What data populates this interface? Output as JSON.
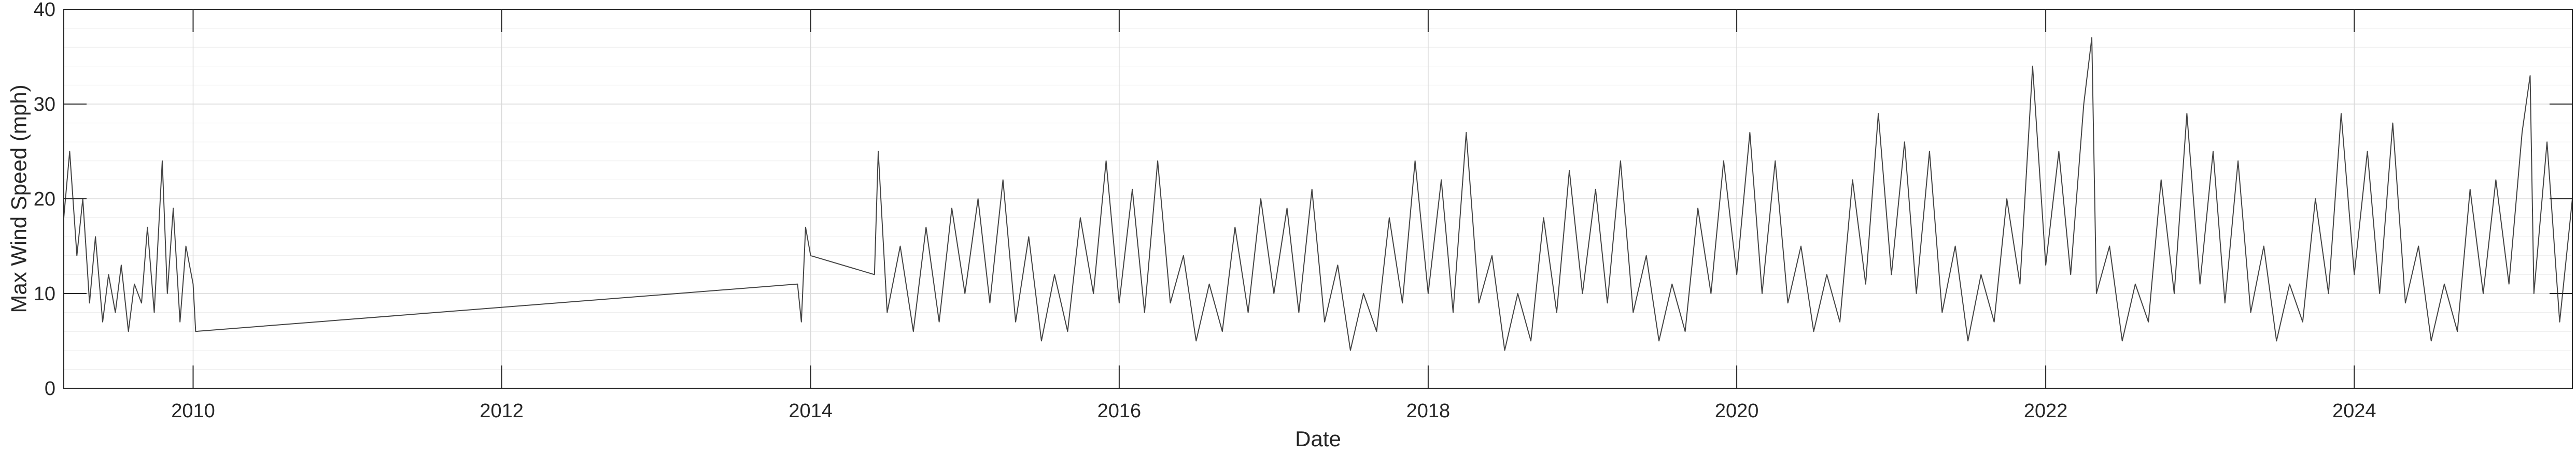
{
  "chart_data": {
    "type": "line",
    "title": "",
    "xlabel": "Date",
    "ylabel": "Max Wind Speed (mph)",
    "xlim": [
      "2009-03-01",
      "2025-05-31"
    ],
    "ylim": [
      0,
      40
    ],
    "x_ticks": [
      "2010",
      "2012",
      "2014",
      "2016",
      "2018",
      "2020",
      "2022",
      "2024"
    ],
    "y_ticks": [
      "0",
      "10",
      "20",
      "30",
      "40"
    ],
    "grid": true,
    "minor_grid_y": true,
    "legend": "none",
    "series": [
      {
        "color": "#444444",
        "values_note": "daily maxima, approx.",
        "points": [
          [
            "2009-03-01",
            18
          ],
          [
            "2009-03-15",
            25
          ],
          [
            "2009-04-01",
            14
          ],
          [
            "2009-04-15",
            20
          ],
          [
            "2009-05-01",
            9
          ],
          [
            "2009-05-15",
            16
          ],
          [
            "2009-06-01",
            7
          ],
          [
            "2009-06-15",
            12
          ],
          [
            "2009-07-01",
            8
          ],
          [
            "2009-07-15",
            13
          ],
          [
            "2009-08-01",
            6
          ],
          [
            "2009-08-15",
            11
          ],
          [
            "2009-09-01",
            9
          ],
          [
            "2009-09-15",
            17
          ],
          [
            "2009-10-01",
            8
          ],
          [
            "2009-10-20",
            24
          ],
          [
            "2009-11-01",
            10
          ],
          [
            "2009-11-15",
            19
          ],
          [
            "2009-12-01",
            7
          ],
          [
            "2009-12-15",
            15
          ],
          [
            "2010-01-01",
            11
          ],
          [
            "2010-01-07",
            6
          ],
          [
            "2013-12-01",
            11
          ],
          [
            "2013-12-10",
            7
          ],
          [
            "2013-12-20",
            17
          ],
          [
            "2014-01-01",
            14
          ],
          [
            "2014-06-01",
            12
          ],
          [
            "2014-06-10",
            25
          ],
          [
            "2014-07-01",
            8
          ],
          [
            "2014-08-01",
            15
          ],
          [
            "2014-09-01",
            6
          ],
          [
            "2014-10-01",
            17
          ],
          [
            "2014-11-01",
            7
          ],
          [
            "2014-12-01",
            19
          ],
          [
            "2015-01-01",
            10
          ],
          [
            "2015-02-01",
            20
          ],
          [
            "2015-03-01",
            9
          ],
          [
            "2015-04-01",
            22
          ],
          [
            "2015-05-01",
            7
          ],
          [
            "2015-06-01",
            16
          ],
          [
            "2015-07-01",
            5
          ],
          [
            "2015-08-01",
            12
          ],
          [
            "2015-09-01",
            6
          ],
          [
            "2015-10-01",
            18
          ],
          [
            "2015-11-01",
            10
          ],
          [
            "2015-12-01",
            24
          ],
          [
            "2016-01-01",
            9
          ],
          [
            "2016-02-01",
            21
          ],
          [
            "2016-03-01",
            8
          ],
          [
            "2016-04-01",
            24
          ],
          [
            "2016-05-01",
            9
          ],
          [
            "2016-06-01",
            14
          ],
          [
            "2016-07-01",
            5
          ],
          [
            "2016-08-01",
            11
          ],
          [
            "2016-09-01",
            6
          ],
          [
            "2016-10-01",
            17
          ],
          [
            "2016-11-01",
            8
          ],
          [
            "2016-12-01",
            20
          ],
          [
            "2017-01-01",
            10
          ],
          [
            "2017-02-01",
            19
          ],
          [
            "2017-03-01",
            8
          ],
          [
            "2017-04-01",
            21
          ],
          [
            "2017-05-01",
            7
          ],
          [
            "2017-06-01",
            13
          ],
          [
            "2017-07-01",
            4
          ],
          [
            "2017-08-01",
            10
          ],
          [
            "2017-09-01",
            6
          ],
          [
            "2017-10-01",
            18
          ],
          [
            "2017-11-01",
            9
          ],
          [
            "2017-12-01",
            24
          ],
          [
            "2018-01-01",
            10
          ],
          [
            "2018-02-01",
            22
          ],
          [
            "2018-03-01",
            8
          ],
          [
            "2018-04-01",
            27
          ],
          [
            "2018-05-01",
            9
          ],
          [
            "2018-06-01",
            14
          ],
          [
            "2018-07-01",
            4
          ],
          [
            "2018-08-01",
            10
          ],
          [
            "2018-09-01",
            5
          ],
          [
            "2018-10-01",
            18
          ],
          [
            "2018-11-01",
            8
          ],
          [
            "2018-12-01",
            23
          ],
          [
            "2019-01-01",
            10
          ],
          [
            "2019-02-01",
            21
          ],
          [
            "2019-03-01",
            9
          ],
          [
            "2019-04-01",
            24
          ],
          [
            "2019-05-01",
            8
          ],
          [
            "2019-06-01",
            14
          ],
          [
            "2019-07-01",
            5
          ],
          [
            "2019-08-01",
            11
          ],
          [
            "2019-09-01",
            6
          ],
          [
            "2019-10-01",
            19
          ],
          [
            "2019-11-01",
            10
          ],
          [
            "2019-12-01",
            24
          ],
          [
            "2020-01-01",
            12
          ],
          [
            "2020-02-01",
            27
          ],
          [
            "2020-03-01",
            10
          ],
          [
            "2020-04-01",
            24
          ],
          [
            "2020-05-01",
            9
          ],
          [
            "2020-06-01",
            15
          ],
          [
            "2020-07-01",
            6
          ],
          [
            "2020-08-01",
            12
          ],
          [
            "2020-09-01",
            7
          ],
          [
            "2020-10-01",
            22
          ],
          [
            "2020-11-01",
            11
          ],
          [
            "2020-12-01",
            29
          ],
          [
            "2021-01-01",
            12
          ],
          [
            "2021-02-01",
            26
          ],
          [
            "2021-03-01",
            10
          ],
          [
            "2021-04-01",
            25
          ],
          [
            "2021-05-01",
            8
          ],
          [
            "2021-06-01",
            15
          ],
          [
            "2021-07-01",
            5
          ],
          [
            "2021-08-01",
            12
          ],
          [
            "2021-09-01",
            7
          ],
          [
            "2021-10-01",
            20
          ],
          [
            "2021-11-01",
            11
          ],
          [
            "2021-12-01",
            34
          ],
          [
            "2022-01-01",
            13
          ],
          [
            "2022-02-01",
            25
          ],
          [
            "2022-03-01",
            12
          ],
          [
            "2022-04-01",
            30
          ],
          [
            "2022-04-20",
            37
          ],
          [
            "2022-05-01",
            10
          ],
          [
            "2022-06-01",
            15
          ],
          [
            "2022-07-01",
            5
          ],
          [
            "2022-08-01",
            11
          ],
          [
            "2022-09-01",
            7
          ],
          [
            "2022-10-01",
            22
          ],
          [
            "2022-11-01",
            10
          ],
          [
            "2022-12-01",
            29
          ],
          [
            "2023-01-01",
            11
          ],
          [
            "2023-02-01",
            25
          ],
          [
            "2023-03-01",
            9
          ],
          [
            "2023-04-01",
            24
          ],
          [
            "2023-05-01",
            8
          ],
          [
            "2023-06-01",
            15
          ],
          [
            "2023-07-01",
            5
          ],
          [
            "2023-08-01",
            11
          ],
          [
            "2023-09-01",
            7
          ],
          [
            "2023-10-01",
            20
          ],
          [
            "2023-11-01",
            10
          ],
          [
            "2023-12-01",
            29
          ],
          [
            "2024-01-01",
            12
          ],
          [
            "2024-02-01",
            25
          ],
          [
            "2024-03-01",
            10
          ],
          [
            "2024-04-01",
            28
          ],
          [
            "2024-05-01",
            9
          ],
          [
            "2024-06-01",
            15
          ],
          [
            "2024-07-01",
            5
          ],
          [
            "2024-08-01",
            11
          ],
          [
            "2024-09-01",
            6
          ],
          [
            "2024-10-01",
            21
          ],
          [
            "2024-11-01",
            10
          ],
          [
            "2024-12-01",
            22
          ],
          [
            "2025-01-01",
            11
          ],
          [
            "2025-02-01",
            27
          ],
          [
            "2025-02-20",
            33
          ],
          [
            "2025-03-01",
            10
          ],
          [
            "2025-04-01",
            26
          ],
          [
            "2025-05-01",
            7
          ],
          [
            "2025-05-31",
            20
          ]
        ]
      }
    ]
  }
}
